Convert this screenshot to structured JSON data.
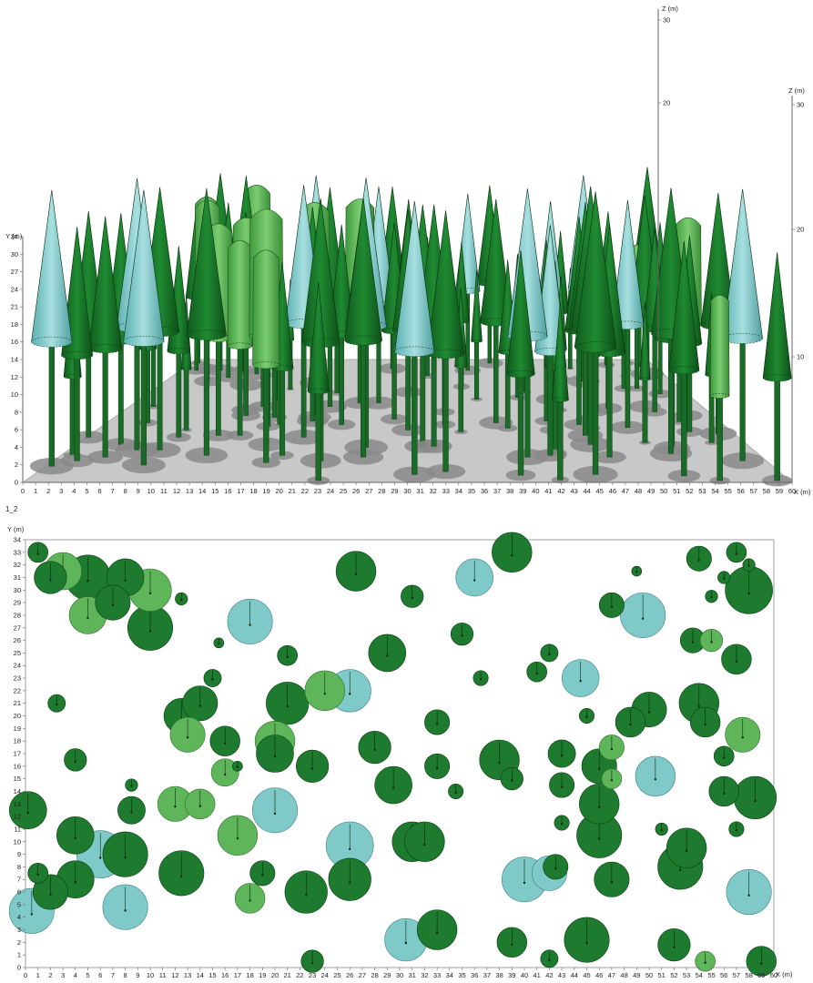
{
  "colors": {
    "dark_green": "#1e7a2e",
    "light_green": "#5fb65a",
    "cyan": "#7fc9c9",
    "shadow": "#8a8a8a",
    "ground": "#c8c8c8"
  },
  "top_view": {
    "y_axis_label": "Y (m)",
    "x_axis_label": "X (m)",
    "z_axis_label_1": "Z (m)",
    "z_axis_label_2": "Z (m)",
    "y_ticks": [
      "0",
      "2",
      "4",
      "6",
      "8",
      "10",
      "12",
      "14",
      "16",
      "18",
      "21",
      "24",
      "27",
      "30",
      "34"
    ],
    "x_ticks": [
      "0",
      "1",
      "2",
      "3",
      "4",
      "5",
      "6",
      "7",
      "8",
      "9",
      "10",
      "11",
      "12",
      "13",
      "14",
      "15",
      "16",
      "17",
      "18",
      "19",
      "20",
      "21",
      "22",
      "23",
      "24",
      "25",
      "26",
      "27",
      "28",
      "29",
      "30",
      "31",
      "32",
      "33",
      "34",
      "35",
      "36",
      "37",
      "38",
      "39",
      "40",
      "41",
      "42",
      "43",
      "44",
      "45",
      "46",
      "47",
      "48",
      "49",
      "50",
      "51",
      "52",
      "53",
      "54",
      "55",
      "56",
      "57",
      "58",
      "59",
      "60"
    ],
    "z_ticks_1": [
      "20",
      "30"
    ],
    "z_ticks_2": [
      "10",
      "20",
      "30"
    ]
  },
  "panel_label": "1_2",
  "chart_data": {
    "type": "scatter",
    "title": "1_2",
    "xlabel": "X (m)",
    "ylabel": "Y (m)",
    "xlim": [
      0,
      60
    ],
    "ylim": [
      0,
      34
    ],
    "x_ticks": [
      0,
      1,
      2,
      3,
      4,
      5,
      6,
      7,
      8,
      9,
      10,
      11,
      12,
      13,
      14,
      15,
      16,
      17,
      18,
      19,
      20,
      21,
      22,
      23,
      24,
      25,
      26,
      27,
      28,
      29,
      30,
      31,
      32,
      33,
      34,
      35,
      36,
      37,
      38,
      39,
      40,
      41,
      42,
      43,
      44,
      45,
      46,
      47,
      48,
      49,
      50,
      51,
      52,
      53,
      54,
      55,
      56,
      57,
      58,
      59,
      60
    ],
    "y_ticks": [
      0,
      1,
      2,
      3,
      4,
      5,
      6,
      7,
      8,
      9,
      10,
      11,
      12,
      13,
      14,
      15,
      16,
      17,
      18,
      19,
      20,
      21,
      22,
      23,
      24,
      25,
      26,
      27,
      28,
      29,
      30,
      31,
      32,
      33,
      34
    ],
    "series": [
      {
        "color": "dark",
        "points": [
          [
            1,
            33,
            0.8
          ],
          [
            2,
            31,
            1.3
          ],
          [
            5,
            31,
            1.8
          ],
          [
            7,
            29,
            1.4
          ],
          [
            10,
            27,
            1.8
          ],
          [
            8,
            31,
            1.5
          ],
          [
            12.5,
            29.3,
            0.5
          ],
          [
            2.5,
            21,
            0.7
          ],
          [
            4,
            16.5,
            0.9
          ],
          [
            0.2,
            12.5,
            1.5
          ],
          [
            4,
            10.5,
            1.5
          ],
          [
            8.5,
            12.5,
            1.1
          ],
          [
            8,
            9,
            1.8
          ],
          [
            8.5,
            14.5,
            0.5
          ],
          [
            2,
            6,
            1.4
          ],
          [
            4,
            7,
            1.5
          ],
          [
            1,
            7.5,
            0.8
          ],
          [
            12.5,
            7.5,
            1.8
          ],
          [
            12.5,
            20,
            1.4
          ],
          [
            14,
            21,
            1.4
          ],
          [
            15,
            23,
            0.7
          ],
          [
            15.5,
            25.8,
            0.4
          ],
          [
            16,
            18,
            1.2
          ],
          [
            17,
            16,
            0.4
          ],
          [
            20,
            17,
            1.5
          ],
          [
            21,
            21,
            1.7
          ],
          [
            21,
            24.8,
            0.8
          ],
          [
            23,
            16,
            1.3
          ],
          [
            19,
            7.5,
            1.0
          ],
          [
            22.5,
            6,
            1.7
          ],
          [
            26,
            7,
            1.7
          ],
          [
            23,
            0.5,
            0.9
          ],
          [
            26.5,
            31.5,
            1.6
          ],
          [
            28,
            17.5,
            1.3
          ],
          [
            29.5,
            14.5,
            1.5
          ],
          [
            29,
            25,
            1.5
          ],
          [
            31,
            29.5,
            0.9
          ],
          [
            31,
            10,
            1.6
          ],
          [
            33,
            19.5,
            1.0
          ],
          [
            33,
            16,
            1.0
          ],
          [
            32,
            10,
            1.6
          ],
          [
            33,
            3,
            1.6
          ],
          [
            34.5,
            14,
            0.6
          ],
          [
            35,
            26.5,
            0.9
          ],
          [
            36.5,
            23,
            0.6
          ],
          [
            38,
            16.5,
            1.6
          ],
          [
            39,
            15,
            0.9
          ],
          [
            39,
            33,
            1.6
          ],
          [
            39,
            2,
            1.2
          ],
          [
            41,
            23.5,
            0.8
          ],
          [
            42,
            25,
            0.7
          ],
          [
            42,
            0.7,
            0.7
          ],
          [
            43,
            17,
            1.1
          ],
          [
            43,
            14.5,
            1.0
          ],
          [
            42.5,
            8,
            1.0
          ],
          [
            43,
            11.5,
            0.6
          ],
          [
            45,
            20,
            0.6
          ],
          [
            46,
            16,
            1.4
          ],
          [
            46,
            13,
            1.6
          ],
          [
            46,
            10.5,
            1.8
          ],
          [
            45,
            2.2,
            1.8
          ],
          [
            47,
            28.8,
            1.0
          ],
          [
            47,
            7,
            1.4
          ],
          [
            48.5,
            19.5,
            1.2
          ],
          [
            49,
            31.5,
            0.4
          ],
          [
            50,
            20.5,
            1.4
          ],
          [
            51,
            11,
            0.5
          ],
          [
            52,
            1.8,
            1.3
          ],
          [
            53,
            9.5,
            1.6
          ],
          [
            52.5,
            8,
            1.8
          ],
          [
            53.5,
            26,
            1.0
          ],
          [
            54,
            21,
            1.6
          ],
          [
            54.5,
            19.5,
            1.2
          ],
          [
            54,
            32.5,
            1.0
          ],
          [
            55,
            29.5,
            0.5
          ],
          [
            56,
            31,
            0.5
          ],
          [
            56,
            14,
            1.2
          ],
          [
            56,
            16.8,
            0.8
          ],
          [
            57,
            33,
            0.8
          ],
          [
            57,
            24.5,
            1.2
          ],
          [
            57,
            11,
            0.6
          ],
          [
            58,
            30,
            1.9
          ],
          [
            58,
            32,
            0.5
          ],
          [
            58.5,
            13.5,
            1.7
          ],
          [
            59,
            0.5,
            1.2
          ]
        ]
      },
      {
        "color": "light",
        "points": [
          [
            3,
            31.5,
            1.5
          ],
          [
            5,
            28,
            1.5
          ],
          [
            10,
            30,
            1.7
          ],
          [
            12,
            13,
            1.4
          ],
          [
            14,
            13,
            1.2
          ],
          [
            13,
            18.5,
            1.4
          ],
          [
            16,
            15.5,
            1.1
          ],
          [
            17,
            10.5,
            1.6
          ],
          [
            18,
            5.5,
            1.2
          ],
          [
            20,
            18,
            1.6
          ],
          [
            24,
            22,
            1.6
          ],
          [
            47,
            17.5,
            1.0
          ],
          [
            47,
            15,
            0.8
          ],
          [
            55,
            26,
            0.9
          ],
          [
            57.5,
            18.5,
            1.4
          ],
          [
            54.5,
            0.5,
            0.8
          ]
        ]
      },
      {
        "color": "cyan",
        "points": [
          [
            0.5,
            4.5,
            1.8
          ],
          [
            6,
            9,
            1.9
          ],
          [
            8,
            4.8,
            1.8
          ],
          [
            18,
            27.5,
            1.8
          ],
          [
            20,
            12.5,
            1.8
          ],
          [
            26,
            9.7,
            1.9
          ],
          [
            26,
            22,
            1.7
          ],
          [
            30.5,
            2.2,
            1.7
          ],
          [
            36,
            31,
            1.5
          ],
          [
            40,
            7,
            1.8
          ],
          [
            42,
            7.5,
            1.4
          ],
          [
            44.5,
            23,
            1.5
          ],
          [
            49.5,
            28,
            1.8
          ],
          [
            50.5,
            15.2,
            1.6
          ],
          [
            58,
            6,
            1.8
          ]
        ]
      }
    ]
  }
}
